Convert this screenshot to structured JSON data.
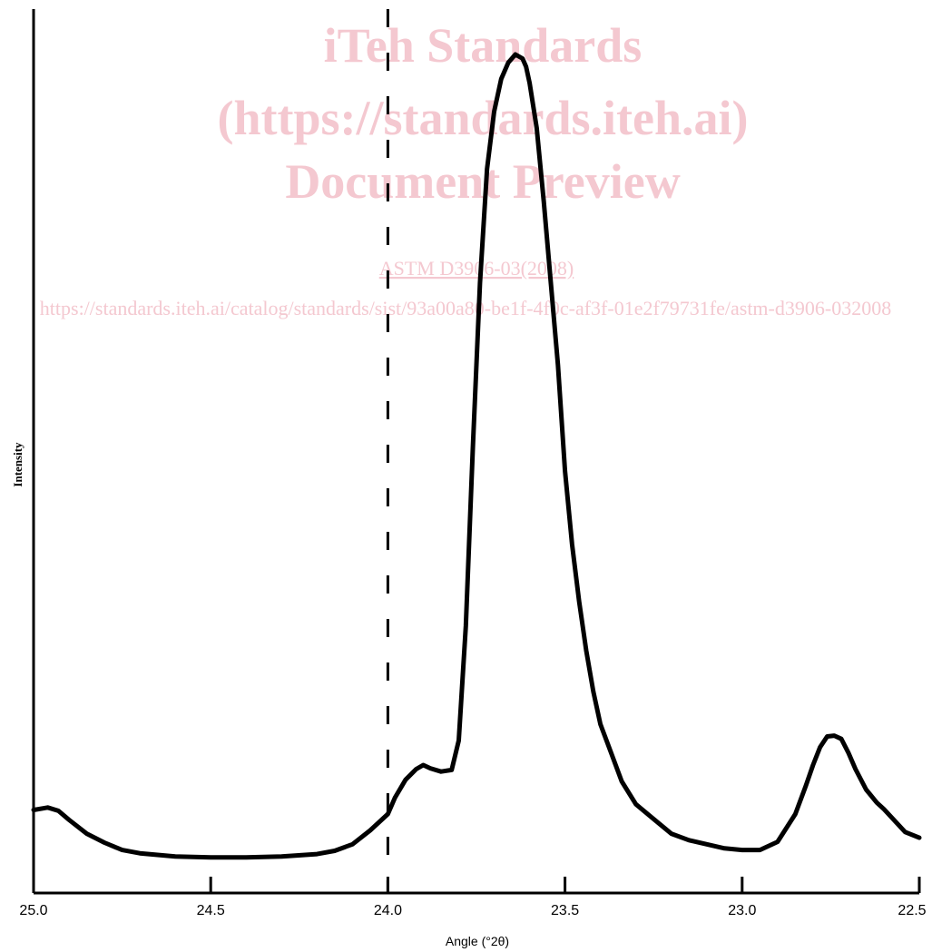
{
  "watermark": {
    "line1": "iTeh Standards",
    "line2": "(https://standards.iteh.ai)",
    "line3": "Document Preview",
    "doc_link": "ASTM D3906-03(2008)",
    "url": "https://standards.iteh.ai/catalog/standards/sist/93a00a80-be1f-4f0c-af3f-01e2f79731fe/astm-d3906-032008"
  },
  "chart_data": {
    "type": "line",
    "xlabel": "Angle (°2θ)",
    "ylabel": "Intensity",
    "xlim": [
      25.0,
      22.5
    ],
    "x_reversed": true,
    "ylim": [
      0,
      100
    ],
    "xticks": [
      "25.0",
      "24.5",
      "24.0",
      "23.5",
      "23.0",
      "22.5"
    ],
    "xtick_values": [
      25.0,
      24.5,
      24.0,
      23.5,
      23.0,
      22.5
    ],
    "reference_line": {
      "x": 24.0,
      "style": "dashed"
    },
    "series": [
      {
        "x": [
          25.0,
          24.96,
          24.93,
          24.9,
          24.85,
          24.8,
          24.75,
          24.7,
          24.6,
          24.5,
          24.4,
          24.3,
          24.2,
          24.15,
          24.1,
          24.05,
          24.0,
          23.98,
          23.95,
          23.92,
          23.9,
          23.88,
          23.85,
          23.82,
          23.8,
          23.78,
          23.76,
          23.74,
          23.72,
          23.7,
          23.68,
          23.66,
          23.64,
          23.62,
          23.61,
          23.6,
          23.58,
          23.56,
          23.54,
          23.52,
          23.5,
          23.48,
          23.46,
          23.44,
          23.42,
          23.4,
          23.37,
          23.34,
          23.3,
          23.25,
          23.2,
          23.15,
          23.1,
          23.05,
          23.0,
          22.95,
          22.9,
          22.85,
          22.82,
          22.8,
          22.78,
          22.76,
          22.74,
          22.72,
          22.7,
          22.68,
          22.65,
          22.62,
          22.6,
          22.57,
          22.54,
          22.5
        ],
        "y": [
          7.5,
          7.8,
          7.4,
          6.3,
          4.6,
          3.5,
          2.6,
          2.2,
          1.8,
          1.7,
          1.7,
          1.8,
          2.1,
          2.5,
          3.3,
          5.0,
          7.0,
          9.0,
          11.2,
          12.5,
          13.0,
          12.6,
          12.2,
          12.4,
          16.0,
          30.0,
          52.0,
          72.0,
          86.0,
          93.0,
          97.0,
          99.0,
          100.0,
          99.5,
          98.5,
          96.5,
          91.0,
          82.0,
          72.0,
          62.0,
          49.0,
          40.0,
          33.0,
          27.0,
          22.0,
          18.0,
          14.5,
          11.0,
          8.2,
          6.4,
          4.6,
          3.8,
          3.3,
          2.8,
          2.6,
          2.6,
          3.6,
          7.0,
          10.5,
          13.0,
          15.2,
          16.5,
          16.6,
          16.2,
          14.5,
          12.5,
          10.0,
          8.4,
          7.6,
          6.2,
          4.8,
          4.1
        ]
      }
    ]
  }
}
